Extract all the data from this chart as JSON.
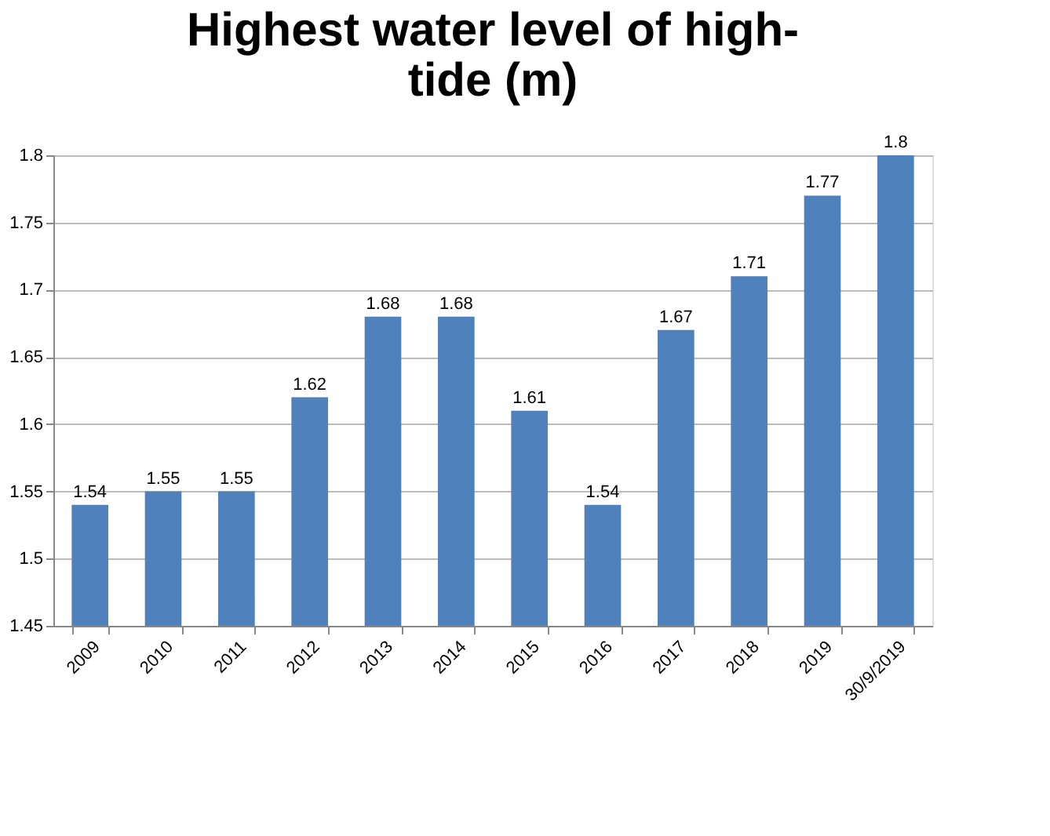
{
  "chart_data": {
    "type": "bar",
    "title": "Highest water level of high-tide (m)",
    "categories": [
      "2009",
      "2010",
      "2011",
      "2012",
      "2013",
      "2014",
      "2015",
      "2016",
      "2017",
      "2018",
      "2019",
      "30/9/2019"
    ],
    "series": [
      {
        "color": "#4f81bd",
        "values": [
          1.54,
          1.55,
          1.55,
          1.62,
          1.68,
          1.68,
          1.61,
          1.54,
          1.67,
          1.71,
          1.77,
          1.8
        ]
      }
    ],
    "ylim": [
      1.45,
      1.8
    ],
    "yticks": [
      1.45,
      1.5,
      1.55,
      1.6,
      1.65,
      1.7,
      1.75,
      1.8
    ],
    "grid": "y",
    "data_labels": true
  }
}
